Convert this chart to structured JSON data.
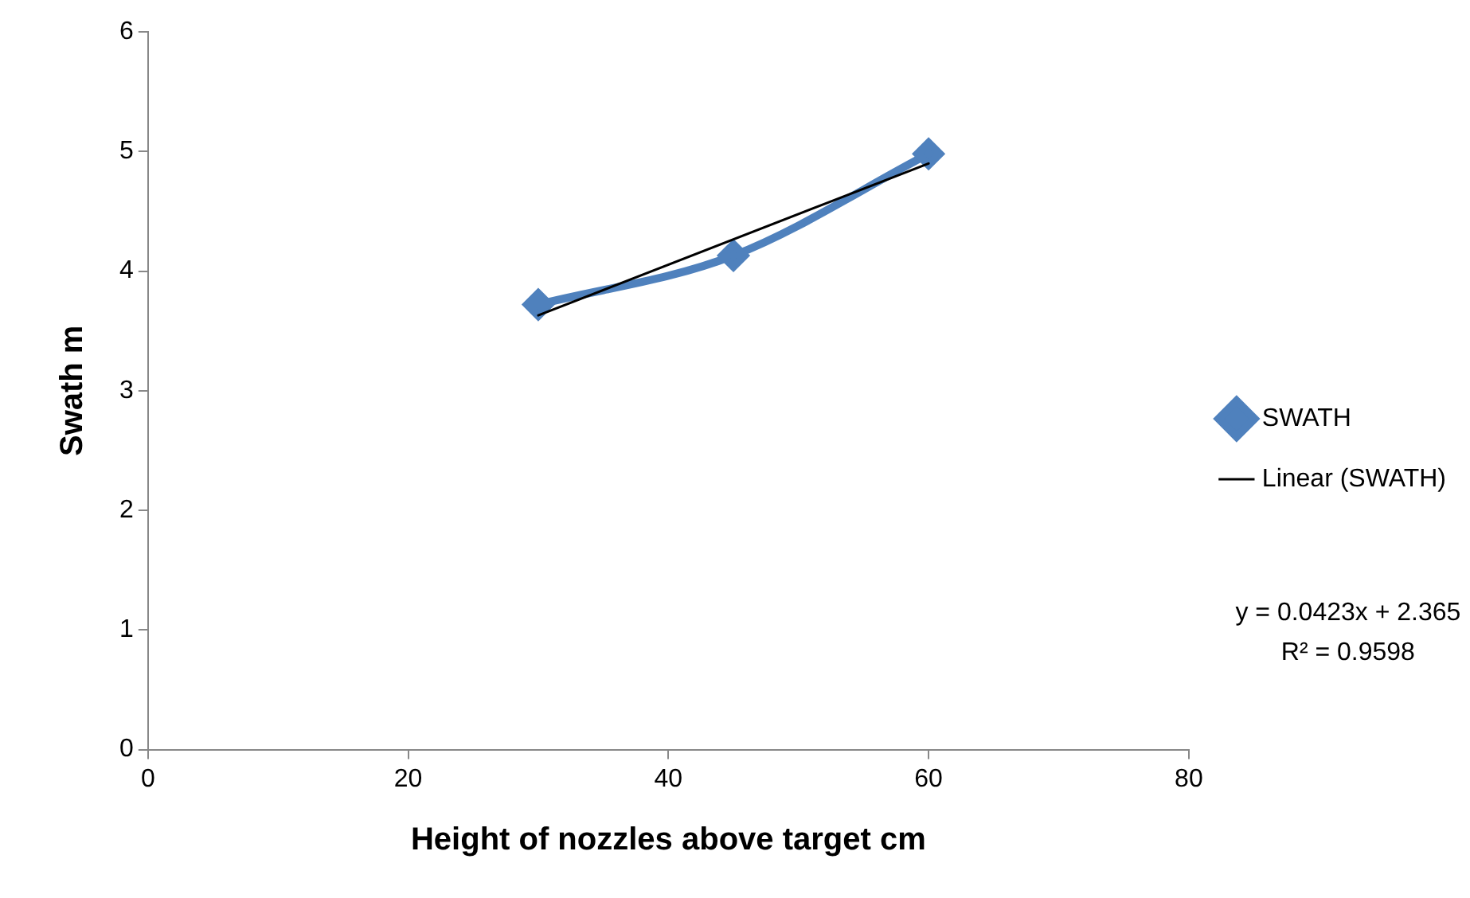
{
  "chart_data": {
    "type": "line",
    "xlabel": "Height of nozzles above target cm",
    "ylabel": "Swath m",
    "xlim": [
      0,
      80
    ],
    "xticks": [
      0,
      20,
      40,
      60,
      80
    ],
    "ylim": [
      0,
      6
    ],
    "yticks": [
      0,
      1,
      2,
      3,
      4,
      5,
      6
    ],
    "grid": false,
    "legend": "right",
    "marker": "diamond",
    "line_style": "solid",
    "series": [
      {
        "name": "SWATH",
        "color": "#4f81bd",
        "x": [
          30,
          45,
          60
        ],
        "values": [
          3.72,
          4.13,
          4.98
        ]
      },
      {
        "name": "Linear (SWATH)",
        "color": "#000000",
        "marker": "none",
        "x": [
          30,
          60
        ],
        "values": [
          3.63,
          4.9
        ]
      }
    ],
    "annotations": [
      "y = 0.0423x + 2.365",
      "R² = 0.9598"
    ]
  }
}
